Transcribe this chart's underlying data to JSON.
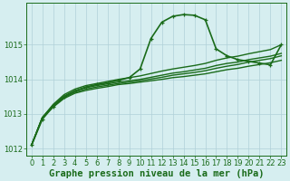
{
  "xlabel": "Graphe pression niveau de la mer (hPa)",
  "ylabel": "",
  "bg_color": "#d6eef0",
  "grid_color": "#b0d0d8",
  "line_color": "#1a6b1a",
  "marker_color": "#1a6b1a",
  "xlim": [
    0,
    23
  ],
  "ylim": [
    1011.8,
    1016.2
  ],
  "yticks": [
    1012,
    1013,
    1014,
    1015
  ],
  "xticks": [
    0,
    1,
    2,
    3,
    4,
    5,
    6,
    7,
    8,
    9,
    10,
    11,
    12,
    13,
    14,
    15,
    16,
    17,
    18,
    19,
    20,
    21,
    22,
    23
  ],
  "lines": [
    {
      "x": [
        0,
        1,
        2,
        3,
        4,
        5,
        6,
        7,
        8,
        9,
        10,
        11,
        12,
        13,
        14,
        15,
        16,
        17,
        18,
        19,
        20,
        21,
        22,
        23
      ],
      "y": [
        1012.1,
        1012.9,
        1013.2,
        1013.45,
        1013.6,
        1013.68,
        1013.74,
        1013.79,
        1013.85,
        1013.88,
        1013.92,
        1013.96,
        1014.0,
        1014.05,
        1014.08,
        1014.12,
        1014.16,
        1014.22,
        1014.28,
        1014.32,
        1014.38,
        1014.43,
        1014.48,
        1014.55
      ],
      "has_marker": false,
      "lw": 1.0
    },
    {
      "x": [
        0,
        1,
        2,
        3,
        4,
        5,
        6,
        7,
        8,
        9,
        10,
        11,
        12,
        13,
        14,
        15,
        16,
        17,
        18,
        19,
        20,
        21,
        22,
        23
      ],
      "y": [
        1012.1,
        1012.9,
        1013.22,
        1013.48,
        1013.63,
        1013.72,
        1013.78,
        1013.83,
        1013.88,
        1013.92,
        1013.96,
        1014.01,
        1014.06,
        1014.12,
        1014.16,
        1014.2,
        1014.25,
        1014.32,
        1014.38,
        1014.43,
        1014.5,
        1014.55,
        1014.6,
        1014.68
      ],
      "has_marker": false,
      "lw": 1.0
    },
    {
      "x": [
        0,
        1,
        2,
        3,
        4,
        5,
        6,
        7,
        8,
        9,
        10,
        11,
        12,
        13,
        14,
        15,
        16,
        17,
        18,
        19,
        20,
        21,
        22,
        23
      ],
      "y": [
        1012.1,
        1012.9,
        1013.25,
        1013.52,
        1013.67,
        1013.76,
        1013.82,
        1013.87,
        1013.92,
        1013.96,
        1014.0,
        1014.06,
        1014.12,
        1014.18,
        1014.22,
        1014.27,
        1014.32,
        1014.4,
        1014.46,
        1014.5,
        1014.57,
        1014.62,
        1014.67,
        1014.75
      ],
      "has_marker": false,
      "lw": 1.0
    },
    {
      "x": [
        0,
        1,
        2,
        3,
        4,
        5,
        6,
        7,
        8,
        9,
        10,
        11,
        12,
        13,
        14,
        15,
        16,
        17,
        18,
        19,
        20,
        21,
        22,
        23
      ],
      "y": [
        1012.1,
        1012.9,
        1013.28,
        1013.56,
        1013.72,
        1013.82,
        1013.88,
        1013.94,
        1014.0,
        1014.05,
        1014.1,
        1014.17,
        1014.24,
        1014.3,
        1014.35,
        1014.4,
        1014.46,
        1014.55,
        1014.62,
        1014.67,
        1014.74,
        1014.8,
        1014.86,
        1015.0
      ],
      "has_marker": false,
      "lw": 1.0
    },
    {
      "x": [
        0,
        1,
        2,
        3,
        4,
        5,
        6,
        7,
        8,
        9,
        10,
        11,
        12,
        13,
        14,
        15,
        16,
        17,
        18,
        19,
        20,
        21,
        22,
        23
      ],
      "y": [
        1012.1,
        1012.85,
        1013.22,
        1013.5,
        1013.67,
        1013.78,
        1013.85,
        1013.9,
        1013.97,
        1014.05,
        1014.3,
        1015.18,
        1015.65,
        1015.82,
        1015.87,
        1015.85,
        1015.72,
        1014.88,
        1014.68,
        1014.57,
        1014.52,
        1014.47,
        1014.42,
        1015.0
      ],
      "has_marker": true,
      "lw": 1.2
    }
  ],
  "xlabel_fontsize": 7.5,
  "tick_fontsize": 6.0,
  "tick_color": "#1a6b1a",
  "axis_color": "#1a6b1a",
  "spine_color": "#1a6b1a"
}
